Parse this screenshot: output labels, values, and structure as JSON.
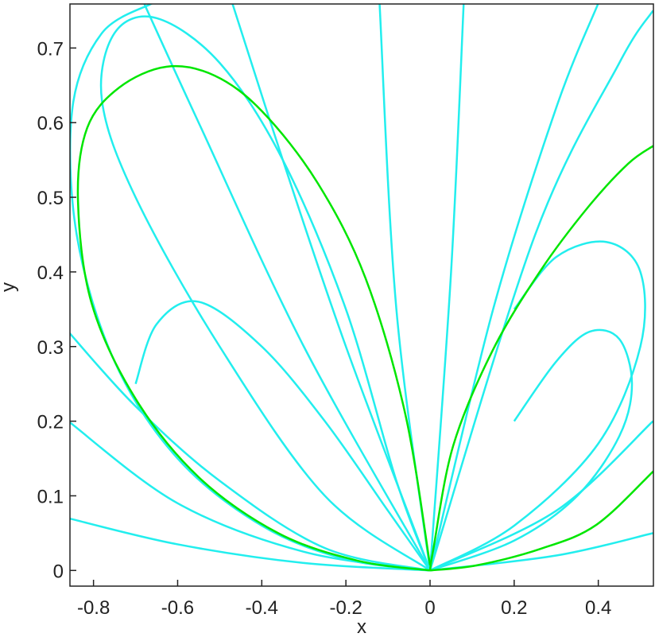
{
  "chart_data": {
    "type": "line",
    "xlabel": "x",
    "ylabel": "y",
    "xlim": [
      -0.856,
      0.531
    ],
    "ylim": [
      -0.021,
      0.759
    ],
    "xticks": [
      -0.8,
      -0.6,
      -0.4,
      -0.2,
      0,
      0.2,
      0.4
    ],
    "yticks": [
      0,
      0.1,
      0.2,
      0.3,
      0.4,
      0.5,
      0.6,
      0.7
    ],
    "series": [
      {
        "color": "#22eeee",
        "x": [
          0,
          -0.2,
          -0.4,
          -0.6,
          -0.75,
          -0.84,
          -0.85,
          -0.78,
          -0.66
        ],
        "y": [
          0,
          0.015,
          0.06,
          0.15,
          0.28,
          0.45,
          0.62,
          0.72,
          0.76
        ]
      },
      {
        "color": "#22eeee",
        "x": [
          0,
          -0.1,
          -0.25,
          -0.4,
          -0.55,
          -0.65,
          -0.7
        ],
        "y": [
          0,
          0.08,
          0.2,
          0.3,
          0.36,
          0.33,
          0.25
        ]
      },
      {
        "color": "#22eeee",
        "x": [
          0,
          -0.2,
          -0.35,
          -0.47
        ],
        "y": [
          0,
          0.3,
          0.55,
          0.76
        ]
      },
      {
        "color": "#22eeee",
        "x": [
          0,
          -0.08,
          -0.12
        ],
        "y": [
          0,
          0.35,
          0.76
        ]
      },
      {
        "color": "#22eeee",
        "x": [
          0,
          0.05,
          0.08
        ],
        "y": [
          0,
          0.4,
          0.76
        ]
      },
      {
        "color": "#22eeee",
        "x": [
          0,
          0.15,
          0.3,
          0.4
        ],
        "y": [
          0,
          0.35,
          0.62,
          0.76
        ]
      },
      {
        "color": "#22eeee",
        "x": [
          0,
          0.2,
          0.35,
          0.45,
          0.48,
          0.45,
          0.38,
          0.3,
          0.2
        ],
        "y": [
          0,
          0.04,
          0.1,
          0.18,
          0.25,
          0.31,
          0.32,
          0.28,
          0.2
        ]
      },
      {
        "color": "#22eeee",
        "x": [
          0,
          0.2,
          0.4,
          0.5,
          0.5,
          0.42,
          0.3,
          0.2
        ],
        "y": [
          0,
          0.06,
          0.17,
          0.3,
          0.4,
          0.44,
          0.42,
          0.35
        ]
      },
      {
        "color": "#22eeee",
        "x": [
          -0.86,
          -0.6,
          -0.3,
          0
        ],
        "y": [
          0.07,
          0.035,
          0.01,
          0
        ]
      },
      {
        "color": "#22eeee",
        "x": [
          -0.86,
          -0.6,
          -0.3,
          0
        ],
        "y": [
          0.2,
          0.09,
          0.025,
          0
        ]
      },
      {
        "color": "#22eeee",
        "x": [
          0,
          0.3,
          0.53
        ],
        "y": [
          0,
          0.02,
          0.05
        ]
      },
      {
        "color": "#22eeee",
        "x": [
          0,
          0.3,
          0.53
        ],
        "y": [
          0,
          0.08,
          0.2
        ]
      },
      {
        "color": "#22eeee",
        "x": [
          0,
          -0.25,
          -0.5,
          -0.7,
          -0.78,
          -0.75,
          -0.65,
          -0.5,
          -0.35,
          -0.2,
          -0.08,
          0
        ],
        "y": [
          0,
          0.1,
          0.3,
          0.5,
          0.63,
          0.72,
          0.74,
          0.68,
          0.55,
          0.35,
          0.12,
          0
        ]
      },
      {
        "color": "#22eeee",
        "x": [
          0,
          -0.3,
          -0.55,
          -0.68
        ],
        "y": [
          0,
          0.3,
          0.6,
          0.76
        ]
      },
      {
        "color": "#22eeee",
        "x": [
          0,
          0.25,
          0.45,
          0.53
        ],
        "y": [
          0,
          0.45,
          0.68,
          0.75
        ]
      },
      {
        "color": "#22eeee",
        "x": [
          -0.86,
          -0.7,
          -0.5,
          -0.25,
          0
        ],
        "y": [
          0.32,
          0.22,
          0.12,
          0.03,
          0
        ]
      },
      {
        "color": "#00e600",
        "x": [
          0,
          -0.172,
          -0.361,
          -0.55,
          -0.701,
          -0.805,
          -0.837,
          -0.815,
          -0.739,
          -0.626,
          -0.512,
          -0.399,
          -0.267,
          -0.153,
          -0.059,
          0
        ],
        "y": [
          0,
          0.013,
          0.05,
          0.125,
          0.231,
          0.359,
          0.498,
          0.593,
          0.647,
          0.675,
          0.663,
          0.615,
          0.519,
          0.391,
          0.21,
          0.007
        ]
      },
      {
        "color": "#00e600",
        "x": [
          0,
          0.008,
          0.055,
          0.149,
          0.263,
          0.376,
          0.471,
          0.531
        ],
        "y": [
          0,
          0.029,
          0.167,
          0.295,
          0.402,
          0.487,
          0.545,
          0.569
        ]
      },
      {
        "color": "#00e600",
        "x": [
          0,
          0.112,
          0.263,
          0.395,
          0.531
        ],
        "y": [
          0,
          0.007,
          0.029,
          0.061,
          0.133
        ]
      }
    ]
  }
}
